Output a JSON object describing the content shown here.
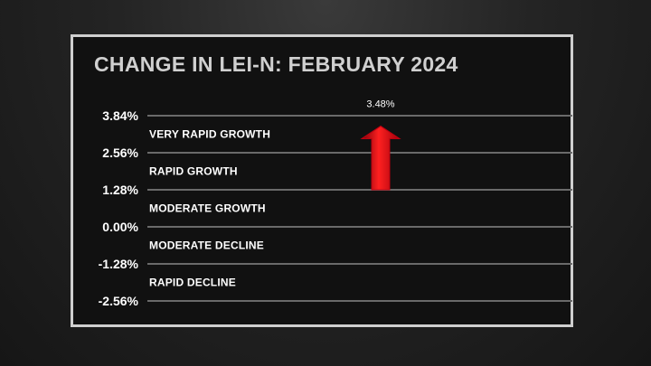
{
  "chart_data": {
    "type": "bar",
    "title": "CHANGE IN LEI-N: FEBRUARY 2024",
    "y_ticks": [
      3.84,
      2.56,
      1.28,
      0.0,
      -1.28,
      -2.56
    ],
    "y_tick_labels": [
      "3.84%",
      "2.56%",
      "1.28%",
      "0.00%",
      "-1.28%",
      "-2.56%"
    ],
    "ylim": [
      -2.56,
      3.84
    ],
    "grid": true,
    "zones": [
      {
        "label": "VERY RAPID GROWTH",
        "from": 2.56,
        "to": 3.84
      },
      {
        "label": "RAPID GROWTH",
        "from": 1.28,
        "to": 2.56
      },
      {
        "label": "MODERATE GROWTH",
        "from": 0.0,
        "to": 1.28
      },
      {
        "label": "MODERATE DECLINE",
        "from": -1.28,
        "to": 0.0
      },
      {
        "label": "RAPID DECLINE",
        "from": -2.56,
        "to": -1.28
      }
    ],
    "values": [
      3.48
    ],
    "value_labels": [
      "3.48%"
    ],
    "bar_base": 1.28,
    "marker": "up-arrow",
    "colors": {
      "arrow": "#e3000f",
      "grid": "#6a6a6a",
      "text": "#ffffff",
      "title": "#d0d0d0"
    }
  }
}
